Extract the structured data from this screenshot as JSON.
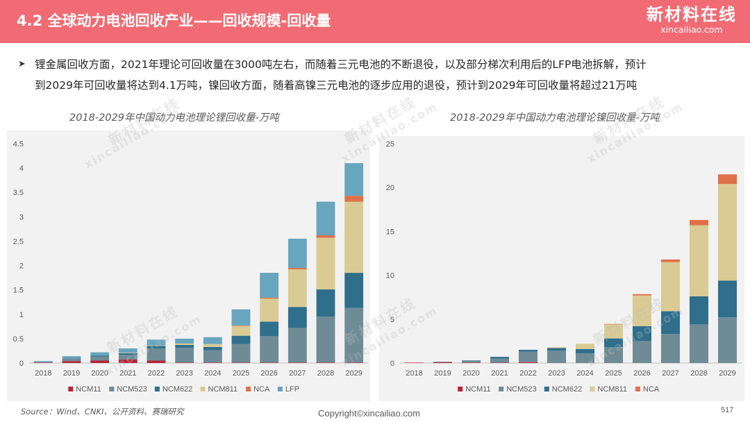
{
  "header": {
    "title": "4.2 全球动力电池回收产业——回收规模-回收量",
    "logo_main": "新材料在线",
    "logo_sub": "xincailiao.com"
  },
  "bullet": {
    "line1": "锂金属回收方面，2021年理论可回收量在3000吨左右，而随着三元电池的不断退役，以及部分梯次利用后的LFP电池拆解，预计",
    "line2": "到2029年可回收量将达到4.1万吨，镍回收方面，随着高镍三元电池的逐步应用的退役，预计到2029年可回收量将超过21万吨"
  },
  "watermark": {
    "main": "新材料在线",
    "sub": "xincailiao.com"
  },
  "footer": {
    "source": "Source：Wind、CNKI、公开资料、赛瑞研究",
    "copyright": "Copyright©xincailiao.com",
    "page": "517"
  },
  "chart_data": [
    {
      "type": "bar",
      "stacked": true,
      "title": "2018-2029年中国动力电池理论锂回收量-万吨",
      "xlabel": "",
      "ylabel": "",
      "categories": [
        "2018",
        "2019",
        "2020",
        "2021",
        "2022",
        "2023",
        "2024",
        "2025",
        "2026",
        "2027",
        "2028",
        "2029"
      ],
      "ylim": [
        0,
        4.5
      ],
      "yticks": [
        "0",
        "0.5",
        "1",
        "1.5",
        "2",
        "2.5",
        "3",
        "3.5",
        "4",
        "4.5"
      ],
      "legend_position": "bottom",
      "grid": false,
      "series": [
        {
          "name": "NCM11",
          "color": "#b5243a",
          "values": [
            0.01,
            0.04,
            0.05,
            0.07,
            0.05,
            0.01,
            0.01,
            0.01,
            0.01,
            0.01,
            0.01,
            0.01
          ]
        },
        {
          "name": "NCM523",
          "color": "#6f8c96",
          "values": [
            0.01,
            0.04,
            0.08,
            0.1,
            0.25,
            0.3,
            0.25,
            0.38,
            0.54,
            0.71,
            0.94,
            1.12
          ]
        },
        {
          "name": "NCM622",
          "color": "#2f6f8c",
          "values": [
            0,
            0.01,
            0.02,
            0.03,
            0.05,
            0.06,
            0.07,
            0.17,
            0.3,
            0.43,
            0.56,
            0.72
          ]
        },
        {
          "name": "NCM811",
          "color": "#d9cb93",
          "values": [
            0,
            0,
            0,
            0.01,
            0.01,
            0.03,
            0.06,
            0.2,
            0.47,
            0.77,
            1.06,
            1.46
          ]
        },
        {
          "name": "NCA",
          "color": "#e07048",
          "values": [
            0,
            0,
            0,
            0,
            0,
            0,
            0,
            0.01,
            0.02,
            0.03,
            0.05,
            0.12
          ]
        },
        {
          "name": "LFP",
          "color": "#68a5be",
          "values": [
            0.02,
            0.05,
            0.07,
            0.09,
            0.12,
            0.1,
            0.14,
            0.33,
            0.51,
            0.6,
            0.69,
            0.67
          ]
        }
      ]
    },
    {
      "type": "bar",
      "stacked": true,
      "title": "2018-2029年中国动力电池理论镍回收量-万吨",
      "xlabel": "",
      "ylabel": "",
      "categories": [
        "2018",
        "2019",
        "2020",
        "2021",
        "2022",
        "2023",
        "2024",
        "2025",
        "2026",
        "2027",
        "2028",
        "2029"
      ],
      "ylim": [
        0,
        25
      ],
      "yticks": [
        "0",
        "5",
        "10",
        "15",
        "20",
        "25"
      ],
      "legend_position": "bottom",
      "grid": false,
      "series": [
        {
          "name": "NCM11",
          "color": "#b5243a",
          "values": [
            0.05,
            0.1,
            0.05,
            0.05,
            0.1,
            0,
            0,
            0,
            0,
            0,
            0,
            0
          ]
        },
        {
          "name": "NCM523",
          "color": "#6f8c96",
          "values": [
            0,
            0.05,
            0.2,
            0.45,
            1.2,
            1.4,
            1.1,
            1.8,
            2.5,
            3.3,
            4.4,
            5.2
          ]
        },
        {
          "name": "NCM622",
          "color": "#2f6f8c",
          "values": [
            0,
            0,
            0.05,
            0.2,
            0.2,
            0.3,
            0.5,
            1.0,
            1.7,
            2.6,
            3.2,
            4.2
          ]
        },
        {
          "name": "NCM811",
          "color": "#d9cb93",
          "values": [
            0,
            0,
            0,
            0,
            0,
            0.1,
            0.6,
            1.6,
            3.5,
            5.6,
            8.1,
            11.0
          ]
        },
        {
          "name": "NCA",
          "color": "#e07048",
          "values": [
            0,
            0,
            0,
            0,
            0,
            0,
            0,
            0.05,
            0.15,
            0.3,
            0.6,
            1.1
          ]
        }
      ]
    }
  ]
}
